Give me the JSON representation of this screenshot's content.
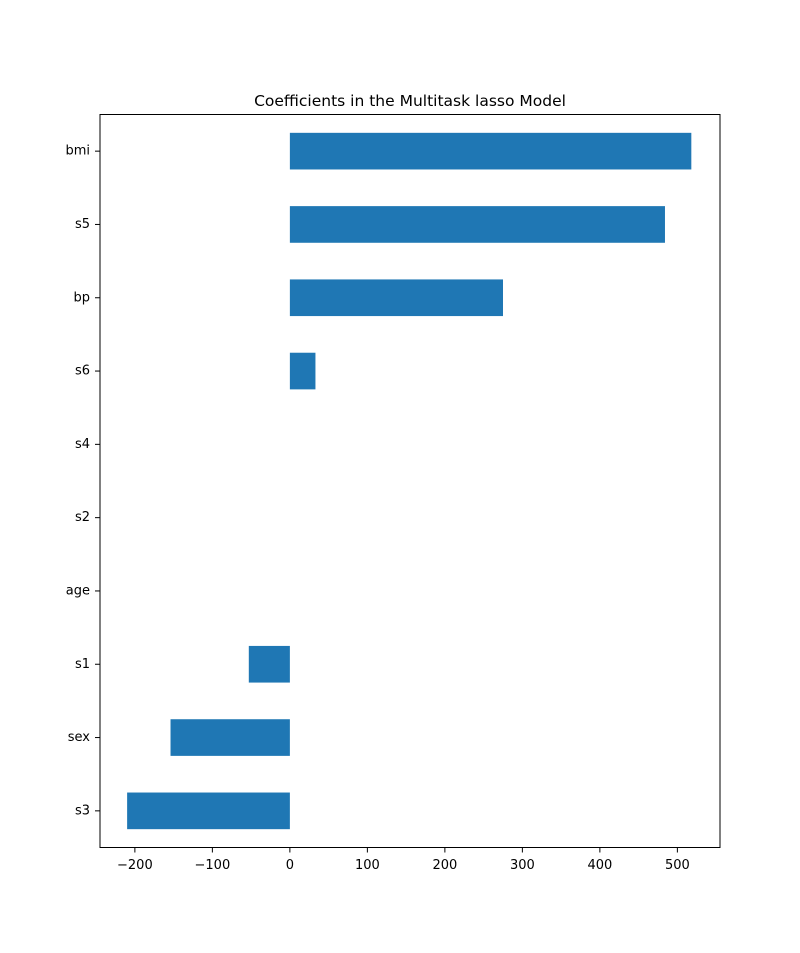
{
  "chart_data": {
    "type": "bar",
    "orientation": "horizontal",
    "title": "Coefficients in the Multitask lasso Model",
    "xlabel": "",
    "ylabel": "",
    "categories": [
      "bmi",
      "s5",
      "bp",
      "s6",
      "s4",
      "s2",
      "age",
      "s1",
      "sex",
      "s3"
    ],
    "values": [
      518,
      484,
      275,
      33,
      0,
      0,
      0,
      -53,
      -154,
      -210
    ],
    "xlim": [
      -245,
      555
    ],
    "xticks": [
      -200,
      -100,
      0,
      100,
      200,
      300,
      400,
      500
    ],
    "xtick_labels": [
      "−200",
      "−100",
      "0",
      "100",
      "200",
      "300",
      "400",
      "500"
    ],
    "bar_color": "#1f77b4",
    "grid": false,
    "legend": "none"
  }
}
